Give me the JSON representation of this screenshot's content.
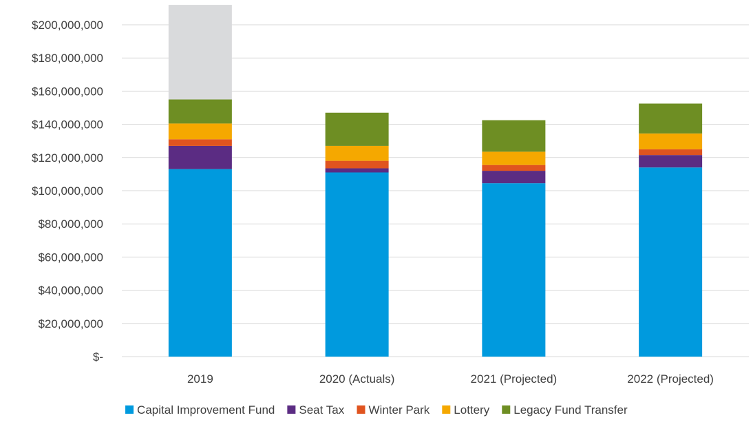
{
  "chart_data": {
    "type": "bar",
    "stacked": true,
    "categories": [
      "2019",
      "2020 (Actuals)",
      "2021 (Projected)",
      "2022 (Projected)"
    ],
    "series": [
      {
        "name": "Capital Improvement Fund",
        "color": "#009ADE",
        "values": [
          113000000,
          111000000,
          104500000,
          114000000
        ]
      },
      {
        "name": "Seat Tax",
        "color": "#5B2C83",
        "values": [
          14000000,
          2500000,
          7500000,
          7500000
        ]
      },
      {
        "name": "Winter Park",
        "color": "#E0541F",
        "values": [
          4000000,
          4500000,
          3500000,
          3500000
        ]
      },
      {
        "name": "Lottery",
        "color": "#F5A800",
        "values": [
          9500000,
          9000000,
          8000000,
          9500000
        ]
      },
      {
        "name": "Legacy Fund Transfer",
        "color": "#6E8E23",
        "values": [
          14500000,
          20000000,
          19000000,
          18000000
        ]
      }
    ],
    "extra_segment": {
      "category_index": 0,
      "color": "#D9DADC",
      "value": 57000000
    },
    "ylim": [
      0,
      200000000
    ],
    "yticks": [
      0,
      20000000,
      40000000,
      60000000,
      80000000,
      100000000,
      120000000,
      140000000,
      160000000,
      180000000,
      200000000
    ],
    "ytick_labels": [
      "$-",
      "$20,000,000",
      "$40,000,000",
      "$60,000,000",
      "$80,000,000",
      "$100,000,000",
      "$120,000,000",
      "$140,000,000",
      "$160,000,000",
      "$180,000,000",
      "$200,000,000"
    ],
    "grid": true,
    "legend_position": "bottom",
    "title": "",
    "xlabel": "",
    "ylabel": ""
  }
}
